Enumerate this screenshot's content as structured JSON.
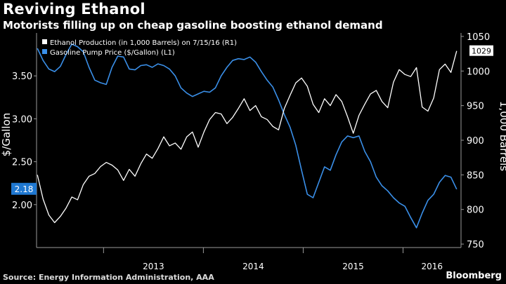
{
  "header": {
    "title": "Reviving Ethanol",
    "subtitle": "Motorists filling up on cheap gasoline boosting ethanol demand"
  },
  "footer": {
    "source": "Source: Energy Information Administration, AAA",
    "brand": "Bloomberg"
  },
  "colors": {
    "background": "#000000",
    "ethanol": "#ffffff",
    "gasoline": "#3a8fe8",
    "gasoline_badge": "#1f78d1",
    "axis": "#9a9a9a"
  },
  "chart_data": {
    "type": "line",
    "x_type": "date",
    "x_range": [
      "2012-05-01",
      "2016-07-31"
    ],
    "x_ticks": [
      "2013",
      "2014",
      "2015",
      "2016"
    ],
    "y_left": {
      "label": "$/Gallon",
      "range": [
        1.5,
        4.0
      ],
      "ticks": [
        "2.00",
        "2.50",
        "3.00",
        "3.50"
      ]
    },
    "y_right": {
      "label": "1,000 Barrels",
      "range": [
        745,
        1055
      ],
      "ticks": [
        "750",
        "800",
        "850",
        "900",
        "950",
        "1000",
        "1050"
      ]
    },
    "legend_position": "top-left",
    "series": [
      {
        "name": "Ethanol Production (in 1,000 Barrels) on 7/15/16 (R1)",
        "axis": "right",
        "last_value_label": "1029",
        "x": [
          "2012-05-04",
          "2012-05-25",
          "2012-06-15",
          "2012-07-06",
          "2012-07-27",
          "2012-08-17",
          "2012-09-07",
          "2012-09-28",
          "2012-10-19",
          "2012-11-09",
          "2012-11-30",
          "2012-12-21",
          "2013-01-11",
          "2013-02-01",
          "2013-02-22",
          "2013-03-15",
          "2013-04-05",
          "2013-04-26",
          "2013-05-17",
          "2013-06-07",
          "2013-06-28",
          "2013-07-19",
          "2013-08-09",
          "2013-08-30",
          "2013-09-20",
          "2013-10-11",
          "2013-11-01",
          "2013-11-22",
          "2013-12-13",
          "2014-01-03",
          "2014-01-24",
          "2014-02-14",
          "2014-03-07",
          "2014-03-28",
          "2014-04-18",
          "2014-05-09",
          "2014-05-30",
          "2014-06-20",
          "2014-07-11",
          "2014-08-01",
          "2014-08-22",
          "2014-09-12",
          "2014-10-03",
          "2014-10-24",
          "2014-11-14",
          "2014-12-05",
          "2014-12-26",
          "2015-01-16",
          "2015-02-06",
          "2015-02-27",
          "2015-03-20",
          "2015-04-10",
          "2015-05-01",
          "2015-05-22",
          "2015-06-12",
          "2015-07-03",
          "2015-07-24",
          "2015-08-14",
          "2015-09-04",
          "2015-09-25",
          "2015-10-16",
          "2015-11-06",
          "2015-11-27",
          "2015-12-18",
          "2016-01-08",
          "2016-01-29",
          "2016-02-19",
          "2016-03-11",
          "2016-04-01",
          "2016-04-22",
          "2016-05-13",
          "2016-06-03",
          "2016-06-24",
          "2016-07-15"
        ],
        "values": [
          850,
          815,
          792,
          781,
          790,
          802,
          818,
          814,
          836,
          848,
          852,
          862,
          868,
          864,
          857,
          842,
          858,
          848,
          866,
          880,
          874,
          888,
          905,
          892,
          896,
          887,
          905,
          912,
          890,
          912,
          930,
          940,
          938,
          924,
          933,
          946,
          960,
          943,
          950,
          934,
          930,
          920,
          915,
          946,
          965,
          983,
          990,
          978,
          952,
          940,
          960,
          950,
          966,
          956,
          934,
          910,
          936,
          952,
          967,
          972,
          956,
          947,
          984,
          1002,
          995,
          992,
          1005,
          948,
          942,
          961,
          1002,
          1010,
          998,
          1029
        ]
      },
      {
        "name": "Gasoline Pump Price ($/Gallon) (L1)",
        "axis": "left",
        "last_value_label": "2.18",
        "x": [
          "2012-05-04",
          "2012-05-25",
          "2012-06-15",
          "2012-07-06",
          "2012-07-27",
          "2012-08-17",
          "2012-09-07",
          "2012-09-28",
          "2012-10-19",
          "2012-11-09",
          "2012-11-30",
          "2012-12-21",
          "2013-01-11",
          "2013-02-01",
          "2013-02-22",
          "2013-03-15",
          "2013-04-05",
          "2013-04-26",
          "2013-05-17",
          "2013-06-07",
          "2013-06-28",
          "2013-07-19",
          "2013-08-09",
          "2013-08-30",
          "2013-09-20",
          "2013-10-11",
          "2013-11-01",
          "2013-11-22",
          "2013-12-13",
          "2014-01-03",
          "2014-01-24",
          "2014-02-14",
          "2014-03-07",
          "2014-03-28",
          "2014-04-18",
          "2014-05-09",
          "2014-05-30",
          "2014-06-20",
          "2014-07-11",
          "2014-08-01",
          "2014-08-22",
          "2014-09-12",
          "2014-10-03",
          "2014-10-24",
          "2014-11-14",
          "2014-12-05",
          "2014-12-26",
          "2015-01-16",
          "2015-02-06",
          "2015-02-27",
          "2015-03-20",
          "2015-04-10",
          "2015-05-01",
          "2015-05-22",
          "2015-06-12",
          "2015-07-03",
          "2015-07-24",
          "2015-08-14",
          "2015-09-04",
          "2015-09-25",
          "2015-10-16",
          "2015-11-06",
          "2015-11-27",
          "2015-12-18",
          "2016-01-08",
          "2016-01-29",
          "2016-02-19",
          "2016-03-11",
          "2016-04-01",
          "2016-04-22",
          "2016-05-13",
          "2016-06-03",
          "2016-06-24",
          "2016-07-15"
        ],
        "values": [
          3.82,
          3.68,
          3.58,
          3.55,
          3.61,
          3.75,
          3.87,
          3.84,
          3.78,
          3.6,
          3.45,
          3.42,
          3.4,
          3.6,
          3.73,
          3.72,
          3.58,
          3.57,
          3.62,
          3.63,
          3.6,
          3.64,
          3.62,
          3.58,
          3.5,
          3.36,
          3.3,
          3.26,
          3.29,
          3.32,
          3.31,
          3.36,
          3.5,
          3.6,
          3.68,
          3.7,
          3.69,
          3.72,
          3.66,
          3.55,
          3.45,
          3.37,
          3.22,
          3.05,
          2.9,
          2.69,
          2.4,
          2.12,
          2.08,
          2.26,
          2.44,
          2.4,
          2.58,
          2.73,
          2.8,
          2.78,
          2.8,
          2.62,
          2.5,
          2.32,
          2.22,
          2.16,
          2.08,
          2.02,
          1.98,
          1.85,
          1.73,
          1.9,
          2.05,
          2.12,
          2.26,
          2.34,
          2.32,
          2.18
        ]
      }
    ]
  }
}
